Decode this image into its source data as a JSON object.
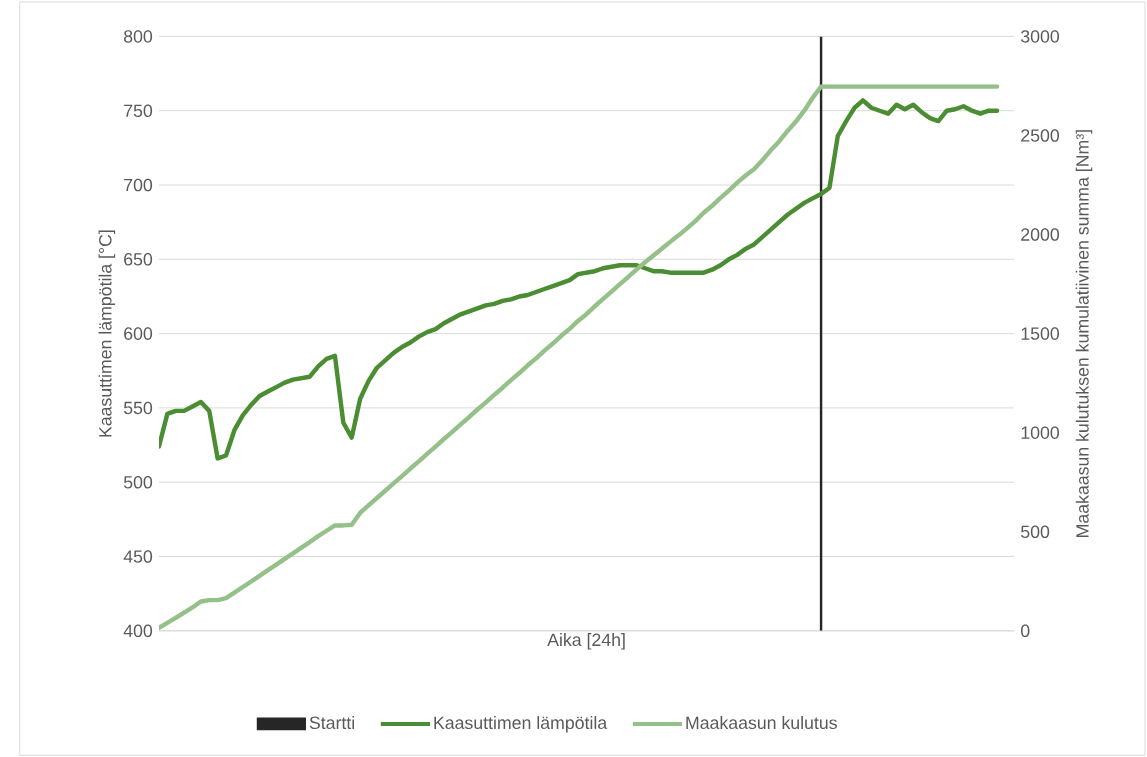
{
  "chart_data": {
    "type": "line",
    "xlabel": "Aika [24h]",
    "ylabel": "Kaasuttimen lämpötila [°C]",
    "y2label": "Maakaasun kulutuksen kumulatiivinen summa [Nm³]",
    "categories": [
      null,
      null,
      null,
      null,
      null,
      null,
      null,
      null,
      null,
      null,
      null,
      null,
      null,
      null,
      null,
      null,
      null,
      null,
      null,
      null,
      null,
      null,
      null,
      null,
      null,
      null,
      null,
      null,
      null,
      null,
      null,
      null,
      null,
      null,
      null,
      null,
      null,
      null,
      null,
      null,
      null,
      null,
      null,
      null,
      null,
      null,
      null,
      null,
      null,
      null,
      null,
      null,
      null,
      null,
      null,
      null,
      null,
      null,
      null,
      null,
      null,
      null,
      null,
      null,
      null,
      null,
      null,
      null,
      null,
      null,
      null,
      null,
      null,
      null,
      null,
      null,
      null,
      null,
      null,
      null,
      null,
      null,
      null,
      null,
      null,
      null,
      null,
      null,
      null,
      null,
      null,
      null,
      null,
      null,
      null,
      null,
      null,
      null,
      null,
      null,
      null
    ],
    "series": [
      {
        "name": "Startti",
        "type": "bar",
        "color": "#262626",
        "values": [
          null,
          null,
          null,
          null,
          null,
          null,
          null,
          null,
          null,
          null,
          null,
          null,
          null,
          null,
          null,
          null,
          null,
          null,
          null,
          null,
          null,
          null,
          null,
          null,
          null,
          null,
          null,
          null,
          null,
          null,
          null,
          null,
          null,
          null,
          null,
          null,
          null,
          null,
          null,
          null,
          null,
          null,
          null,
          null,
          null,
          null,
          null,
          null,
          null,
          null,
          null,
          null,
          null,
          null,
          null,
          null,
          null,
          null,
          null,
          null,
          null,
          null,
          null,
          null,
          null,
          null,
          null,
          null,
          null,
          null,
          null,
          null,
          null,
          null,
          null,
          null,
          null,
          null,
          null,
          800,
          null,
          null,
          null,
          null,
          null,
          null,
          null,
          null,
          null,
          null,
          null,
          null,
          null,
          null,
          null,
          null,
          null,
          null,
          null,
          null,
          null
        ]
      },
      {
        "name": "Kaasuttimen lämpötila",
        "color": "#4a8d32",
        "values": [
          524,
          546,
          548,
          548,
          551,
          554,
          548,
          516,
          518,
          535,
          545,
          552,
          558,
          561,
          564,
          567,
          569,
          570,
          571,
          578,
          583,
          585,
          540,
          530,
          556,
          568,
          577,
          582,
          587,
          591,
          594,
          598,
          601,
          603,
          607,
          610,
          613,
          615,
          617,
          619,
          620,
          622,
          623,
          625,
          626,
          628,
          630,
          632,
          634,
          636,
          640,
          641,
          642,
          644,
          645,
          646,
          646,
          646,
          644,
          642,
          642,
          641,
          641,
          641,
          641,
          641,
          643,
          646,
          650,
          653,
          657,
          660,
          665,
          670,
          675,
          680,
          684,
          688,
          691,
          694,
          698,
          733,
          743,
          752,
          757,
          752,
          750,
          748,
          754,
          751,
          754,
          749,
          745,
          743,
          750,
          751,
          753,
          750,
          748,
          750,
          750
        ]
      },
      {
        "name": "Maakaasun kulutus",
        "axis": "y2",
        "color": "#96c08a",
        "values": [
          15,
          40,
          65,
          92,
          118,
          148,
          155,
          155,
          165,
          193,
          221,
          249,
          277,
          306,
          334,
          363,
          391,
          420,
          448,
          478,
          505,
          532,
          532,
          535,
          595,
          633,
          670,
          707,
          744,
          781,
          819,
          855,
          893,
          930,
          968,
          1004,
          1042,
          1078,
          1117,
          1153,
          1191,
          1227,
          1265,
          1301,
          1340,
          1375,
          1414,
          1450,
          1489,
          1524,
          1564,
          1598,
          1638,
          1675,
          1712,
          1750,
          1786,
          1824,
          1860,
          1894,
          1928,
          1963,
          1996,
          2031,
          2068,
          2110,
          2145,
          2185,
          2222,
          2262,
          2298,
          2330,
          2375,
          2425,
          2470,
          2523,
          2570,
          2625,
          2690,
          2747,
          2747,
          2747,
          2747,
          2747,
          2747,
          2747,
          2747,
          2747,
          2747,
          2747,
          2747,
          2747,
          2747,
          2747,
          2747,
          2747,
          2747,
          2747,
          2747,
          2747,
          2747
        ]
      }
    ],
    "ylim": [
      400,
      800
    ],
    "yticks": [
      400,
      450,
      500,
      550,
      600,
      650,
      700,
      750,
      800
    ],
    "y2lim": [
      0,
      3000
    ],
    "y2ticks": [
      0,
      500,
      1000,
      1500,
      2000,
      2500,
      3000
    ],
    "grid": "y",
    "legend": "bottom"
  }
}
